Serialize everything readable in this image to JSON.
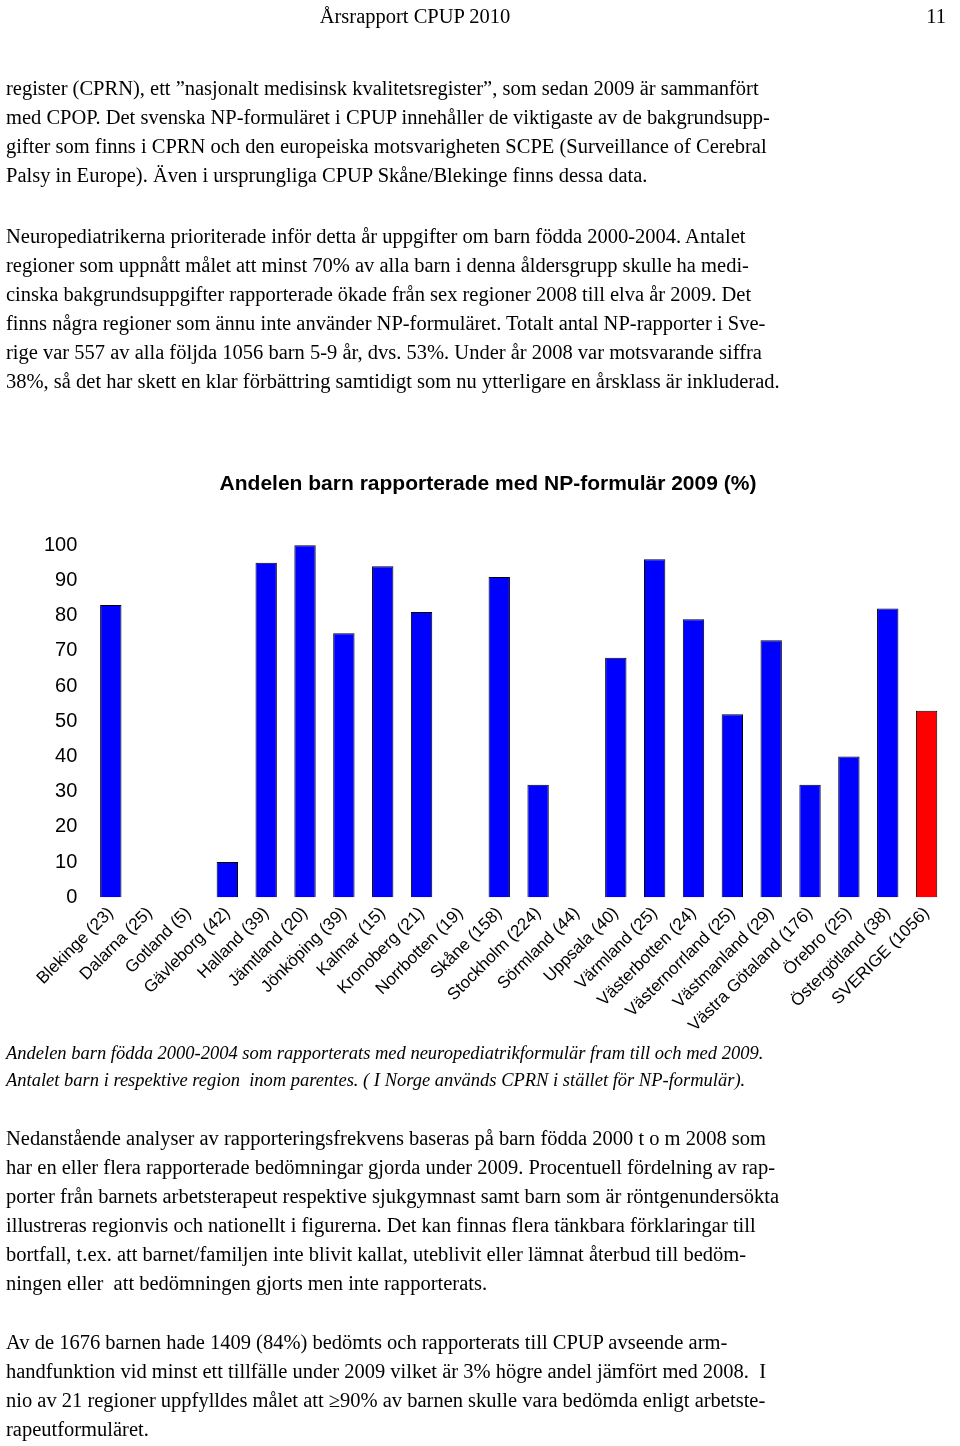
{
  "chart_data": {
    "type": "bar",
    "title": "Andelen barn rapporterade med NP-formulär 2009 (%)",
    "categories": [
      "Blekinge (23)",
      "Dalarna (25)",
      "Gotland (5)",
      "Gävleborg (42)",
      "Halland (39)",
      "Jämtland (20)",
      "Jönköping (39)",
      "Kalmar (15)",
      "Kronoberg (21)",
      "Norrbotten (19)",
      "Skåne (158)",
      "Stockholm (224)",
      "Sörmland (44)",
      "Uppsala (40)",
      "Värmland (25)",
      "Västerbotten (24)",
      "Västernorrland (25)",
      "Västmanland (29)",
      "Västra Götaland (176)",
      "Örebro (25)",
      "Östergötland (38)",
      "SVERIGE (1056)"
    ],
    "values": [
      83,
      0,
      0,
      10,
      95,
      100,
      75,
      94,
      81,
      0,
      91,
      32,
      0,
      68,
      96,
      79,
      52,
      73,
      32,
      40,
      82,
      53
    ],
    "colors": [
      "#0000ff",
      "#0000ff",
      "#0000ff",
      "#0000ff",
      "#0000ff",
      "#0000ff",
      "#0000ff",
      "#0000ff",
      "#0000ff",
      "#0000ff",
      "#0000ff",
      "#0000ff",
      "#0000ff",
      "#0000ff",
      "#0000ff",
      "#0000ff",
      "#0000ff",
      "#0000ff",
      "#0000ff",
      "#0000ff",
      "#0000ff",
      "#ff0000"
    ],
    "ylim": [
      0,
      100
    ],
    "yticks": [
      0,
      10,
      20,
      30,
      40,
      50,
      60,
      70,
      80,
      90,
      100
    ],
    "grid": false,
    "legend": false,
    "annotations": [
      "Årsrapport CPUP 2010",
      "11",
      "register (CPRN), ett ”nasjonalt medisinsk kvalitetsregister”, som sedan 2009 är sammanfört\nmed CPOP. Det svenska NP-formuläret i CPUP innehåller de viktigaste av de bakgrundsupp-\ngifter som finns i CPRN och den europeiska motsvarigheten SCPE (Surveillance of Cerebral\nPalsy in Europe). Även i ursprungliga CPUP Skåne/Blekinge finns dessa data.",
      "Neuropediatrikerna prioriterade inför detta år uppgifter om barn födda 2000-2004. Antalet\nregioner som uppnått målet att minst 70% av alla barn i denna åldersgrupp skulle ha medi-\ncinska bakgrundsuppgifter rapporterade ökade från sex regioner 2008 till elva år 2009. Det\nfinns några regioner som ännu inte använder NP-formuläret. Totalt antal NP-rapporter i Sve-\nrige var 557 av alla följda 1056 barn 5-9 år, dvs. 53%. Under år 2008 var motsvarande siffra\n38%, så det har skett en klar förbättring samtidigt som nu ytterligare en årsklass är inkluderad.",
      "Andelen barn födda 2000-2004 som rapporterats med neuropediatrikformulär fram till och med 2009.\nAntalet barn i respektive region  inom parentes. ( I Norge används CPRN i stället för NP-formulär).",
      "Nedanstående analyser av rapporteringsfrekvens baseras på barn födda 2000 t o m 2008 som\nhar en eller flera rapporterade bedömningar gjorda under 2009. Procentuell fördelning av rap-\nporter från barnets arbetsterapeut respektive sjukgymnast samt barn som är röntgenundersökta\nillustreras regionvis och nationellt i figurerna. Det kan finnas flera tänkbara förklaringar till\nbortfall, t.ex. att barnet/familjen inte blivit kallat, uteblivit eller lämnat återbud till bedöm-\nningen eller  att bedömningen gjorts men inte rapporterats.",
      "Av de 1676 barnen hade 1409 (84%) bedömts och rapporterats till CPUP avseende arm-\nhandfunktion vid minst ett tillfälle under 2009 vilket är 3% högre andel jämfört med 2008.  I\nnio av 21 regioner uppfylldes målet att ≥90% av barnen skulle vara bedömda enligt arbetste-\nrapeutformuläret."
    ]
  }
}
